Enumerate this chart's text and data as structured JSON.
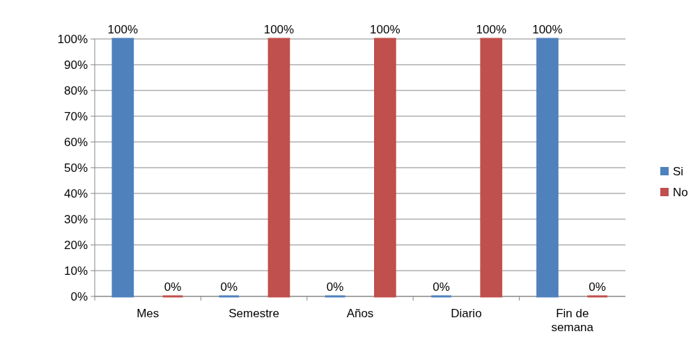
{
  "chart_data": {
    "type": "bar",
    "categories": [
      "Mes",
      "Semestre",
      "Años",
      "Diario",
      "Fin de semana"
    ],
    "series": [
      {
        "name": "Si",
        "color": "#4f81bd",
        "values": [
          100,
          0,
          0,
          0,
          100
        ],
        "value_labels": [
          "100%",
          "0%",
          "0%",
          "0%",
          "100%"
        ]
      },
      {
        "name": "No",
        "color": "#c0504d",
        "values": [
          0,
          100,
          100,
          100,
          0
        ],
        "value_labels": [
          "0%",
          "100%",
          "100%",
          "100%",
          "0%"
        ]
      }
    ],
    "ylim": [
      0,
      100
    ],
    "yticks": [
      {
        "value": 0,
        "label": "0%"
      },
      {
        "value": 10,
        "label": "10%"
      },
      {
        "value": 20,
        "label": "20%"
      },
      {
        "value": 30,
        "label": "30%"
      },
      {
        "value": 40,
        "label": "40%"
      },
      {
        "value": 50,
        "label": "50%"
      },
      {
        "value": 60,
        "label": "60%"
      },
      {
        "value": 70,
        "label": "70%"
      },
      {
        "value": 80,
        "label": "80%"
      },
      {
        "value": 90,
        "label": "90%"
      },
      {
        "value": 100,
        "label": "100%"
      }
    ],
    "grid": "y",
    "legend": "right"
  }
}
